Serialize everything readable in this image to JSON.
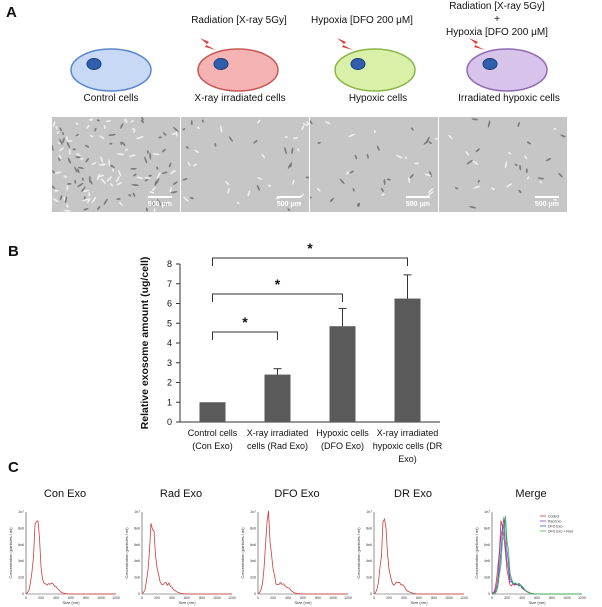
{
  "panelA": {
    "letter": "A",
    "cells": [
      {
        "label": "Control cells",
        "treatment": [],
        "fill": "#c7d9f5",
        "stroke": "#5d87c9",
        "lightning": false
      },
      {
        "label": "X-ray irradiated cells",
        "treatment": [
          "Radiation [X-ray 5Gy]"
        ],
        "fill": "#f6b3b3",
        "stroke": "#c75858",
        "lightning": true
      },
      {
        "label": "Hypoxic cells",
        "treatment": [
          "Hypoxia [DFO 200 μM]"
        ],
        "fill": "#d8f0a8",
        "stroke": "#8cb64a",
        "lightning": true
      },
      {
        "label": "Irradiated hypoxic cells",
        "treatment": [
          "Radiation [X-ray 5Gy]",
          "+",
          "Hypoxia [DFO 200 μM]"
        ],
        "fill": "#d8c3ea",
        "stroke": "#8f6bb5",
        "lightning": true
      }
    ],
    "scalebar_label": "500 μm"
  },
  "panelB": {
    "letter": "B",
    "significance_mark": "*",
    "chart_data": {
      "type": "bar",
      "categories": [
        "Control cells (Con Exo)",
        "X-ray irradiated cells (Rad Exo)",
        "Hypoxic cells (DFO Exo)",
        "X-ray irradiated hypoxic cells (DR Exo)"
      ],
      "category_lines": [
        [
          "Control cells",
          "(Con Exo)"
        ],
        [
          "X-ray irradiated",
          "cells (Rad Exo)"
        ],
        [
          "Hypoxic cells",
          "(DFO Exo)"
        ],
        [
          "X-ray irradiated",
          "hypoxic cells (DR",
          "Exo)"
        ]
      ],
      "values": [
        1.0,
        2.4,
        4.85,
        6.25
      ],
      "errors": [
        0.03,
        0.3,
        0.9,
        1.2
      ],
      "ylabel": "Relative exosome amount (ug/cell)",
      "ylim": [
        0,
        8
      ],
      "yticks": [
        "0",
        "1",
        "2",
        "3",
        "4",
        "5",
        "6",
        "7",
        "8"
      ],
      "bar_color": "#5a5a5a",
      "significance": [
        [
          0,
          1
        ],
        [
          0,
          2
        ],
        [
          0,
          3
        ]
      ]
    }
  },
  "panelC": {
    "letter": "C",
    "plots": [
      {
        "title": "Con Exo",
        "color": "#d23a3a"
      },
      {
        "title": "Rad Exo",
        "color": "#d23a3a"
      },
      {
        "title": "DFO Exo",
        "color": "#d23a3a"
      },
      {
        "title": "DR Exo",
        "color": "#d23a3a"
      },
      {
        "title": "Merge",
        "color": "#d23a3a"
      }
    ],
    "xticks": [
      "0",
      "200",
      "400",
      "600",
      "800",
      "1000",
      "1200"
    ],
    "yticks": [
      "0",
      "2e6",
      "4e6",
      "6e6",
      "8e6",
      "1e7"
    ],
    "xlabel": "Size (nm)",
    "ylabel": "Concentration (particles / ml)",
    "legend": [
      "Control",
      "Rad Exo",
      "DFO Exo",
      "DFO Exo + Rad"
    ],
    "legend_colors": [
      "#d23a3a",
      "#8d3ad2",
      "#3a5bd2",
      "#3ac23a"
    ]
  }
}
